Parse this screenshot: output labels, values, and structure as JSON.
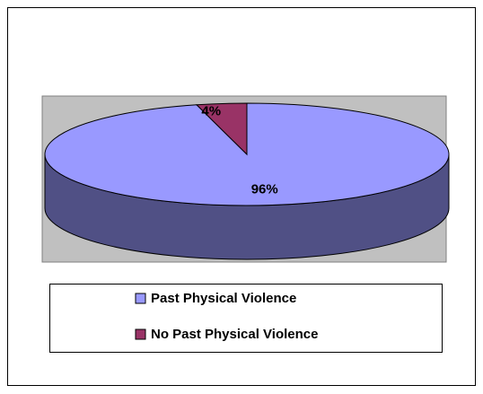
{
  "chart_data": {
    "type": "pie",
    "categories": [
      "Past Physical Violence",
      "No Past Physical Violence"
    ],
    "values": [
      96,
      4
    ],
    "value_labels": [
      "96%",
      "4%"
    ],
    "colors": [
      "#9999ff",
      "#993366"
    ],
    "legend": "bottom"
  }
}
